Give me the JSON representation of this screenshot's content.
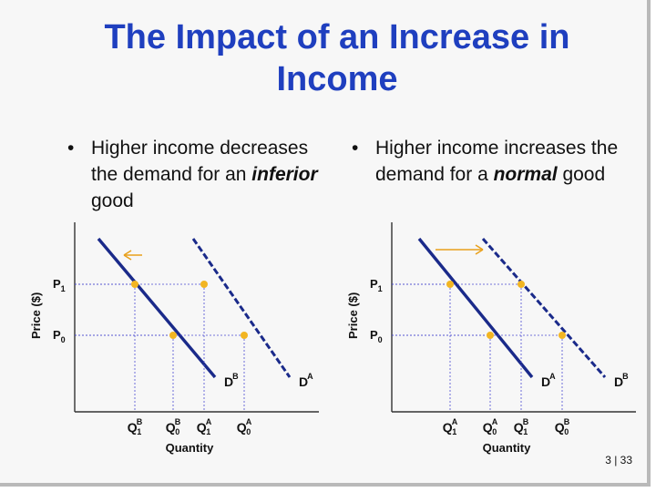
{
  "slide": {
    "title_line1": "The Impact of an Increase in",
    "title_line2": "Income",
    "bullet_left": {
      "pre": "Higher income decreases the demand for an ",
      "emph": "inferior",
      "post": " good"
    },
    "bullet_right": {
      "pre": "Higher income increases the demand for a ",
      "emph": "normal",
      "post": " good"
    },
    "page_number": "3 | 33",
    "bullet_char": "•"
  },
  "colors": {
    "title": "#1f3fbf",
    "curve": "#1a2a8a",
    "point": "#f2b522",
    "arrow": "#e8a01c",
    "guide": "#4a4ad0"
  },
  "chart_data": [
    {
      "type": "line",
      "panel": "inferior",
      "ylabel": "Price ($)",
      "xlabel": "Quantity",
      "yticks": [
        {
          "name": "P",
          "sub": "1",
          "value": 1
        },
        {
          "name": "P",
          "sub": "0",
          "value": 0
        }
      ],
      "xticks": [
        {
          "name": "Q",
          "sub": "1",
          "sup": "B",
          "value": 1
        },
        {
          "name": "Q",
          "sub": "0",
          "sup": "B",
          "value": 2
        },
        {
          "name": "Q",
          "sub": "1",
          "sup": "A",
          "value": 3
        },
        {
          "name": "Q",
          "sub": "0",
          "sup": "A",
          "value": 4
        }
      ],
      "series": [
        {
          "name": "D",
          "sup": "A",
          "style": "dashed",
          "points": [
            [
              3,
              1
            ],
            [
              4,
              0
            ]
          ]
        },
        {
          "name": "D",
          "sup": "B",
          "style": "solid",
          "points": [
            [
              1,
              1
            ],
            [
              2,
              0
            ]
          ]
        }
      ],
      "shift": "left"
    },
    {
      "type": "line",
      "panel": "normal",
      "ylabel": "Price ($)",
      "xlabel": "Quantity",
      "yticks": [
        {
          "name": "P",
          "sub": "1",
          "value": 1
        },
        {
          "name": "P",
          "sub": "0",
          "value": 0
        }
      ],
      "xticks": [
        {
          "name": "Q",
          "sub": "1",
          "sup": "A",
          "value": 1
        },
        {
          "name": "Q",
          "sub": "0",
          "sup": "A",
          "value": 2
        },
        {
          "name": "Q",
          "sub": "1",
          "sup": "B",
          "value": 3
        },
        {
          "name": "Q",
          "sub": "0",
          "sup": "B",
          "value": 4
        }
      ],
      "series": [
        {
          "name": "D",
          "sup": "A",
          "style": "solid",
          "points": [
            [
              1,
              1
            ],
            [
              2,
              0
            ]
          ]
        },
        {
          "name": "D",
          "sup": "B",
          "style": "dashed",
          "points": [
            [
              3,
              1
            ],
            [
              4,
              0
            ]
          ]
        }
      ],
      "shift": "right"
    }
  ]
}
